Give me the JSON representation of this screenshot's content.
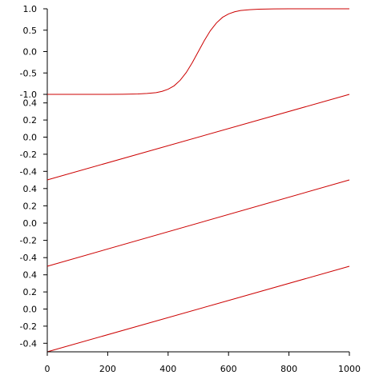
{
  "chart_data": {
    "type": "line",
    "colors": {
      "line": "#cc0000",
      "axis": "#000000",
      "background": "#ffffff"
    },
    "x_axis": {
      "range": [
        0,
        1000
      ],
      "ticks": [
        0,
        200,
        400,
        600,
        800,
        1000
      ],
      "tick_labels": [
        "0",
        "200",
        "400",
        "600",
        "800",
        "1000"
      ]
    },
    "panels": [
      {
        "id": "sigmoid",
        "y_range": [
          -1.0,
          1.0
        ],
        "y_ticks": [
          -1.0,
          -0.5,
          0.0,
          0.5,
          1.0
        ],
        "y_tick_labels": [
          "-1.0",
          "-0.5",
          "0.0",
          "0.5",
          "1.0"
        ],
        "series": {
          "x": [
            0,
            100,
            200,
            250,
            300,
            330,
            360,
            380,
            400,
            420,
            440,
            460,
            480,
            500,
            520,
            540,
            560,
            580,
            600,
            620,
            640,
            670,
            700,
            750,
            800,
            900,
            1000
          ],
          "y": [
            -1.0,
            -1.0,
            -1.0,
            -0.998,
            -0.99,
            -0.98,
            -0.96,
            -0.93,
            -0.88,
            -0.8,
            -0.67,
            -0.49,
            -0.26,
            0.0,
            0.26,
            0.49,
            0.67,
            0.8,
            0.88,
            0.93,
            0.96,
            0.98,
            0.99,
            0.998,
            1.0,
            1.0,
            1.0
          ]
        }
      },
      {
        "id": "linear-1",
        "y_range": [
          -0.5,
          0.5
        ],
        "y_ticks": [
          -0.4,
          -0.2,
          0.0,
          0.2,
          0.4
        ],
        "y_tick_labels": [
          "-0.4",
          "-0.2",
          "0.0",
          "0.2",
          "0.4"
        ],
        "series": {
          "x": [
            0,
            1000
          ],
          "y": [
            -0.5,
            0.5
          ]
        }
      },
      {
        "id": "linear-2",
        "y_range": [
          -0.5,
          0.5
        ],
        "y_ticks": [
          -0.4,
          -0.2,
          0.0,
          0.2,
          0.4
        ],
        "y_tick_labels": [
          "-0.4",
          "-0.2",
          "0.0",
          "0.2",
          "0.4"
        ],
        "series": {
          "x": [
            0,
            1000
          ],
          "y": [
            -0.5,
            0.5
          ]
        }
      },
      {
        "id": "linear-3",
        "y_range": [
          -0.5,
          0.5
        ],
        "y_ticks": [
          -0.4,
          -0.2,
          0.0,
          0.2,
          0.4
        ],
        "y_tick_labels": [
          "-0.4",
          "-0.2",
          "0.0",
          "0.2",
          "0.4"
        ],
        "series": {
          "x": [
            0,
            1000
          ],
          "y": [
            -0.5,
            0.5
          ]
        }
      }
    ]
  }
}
